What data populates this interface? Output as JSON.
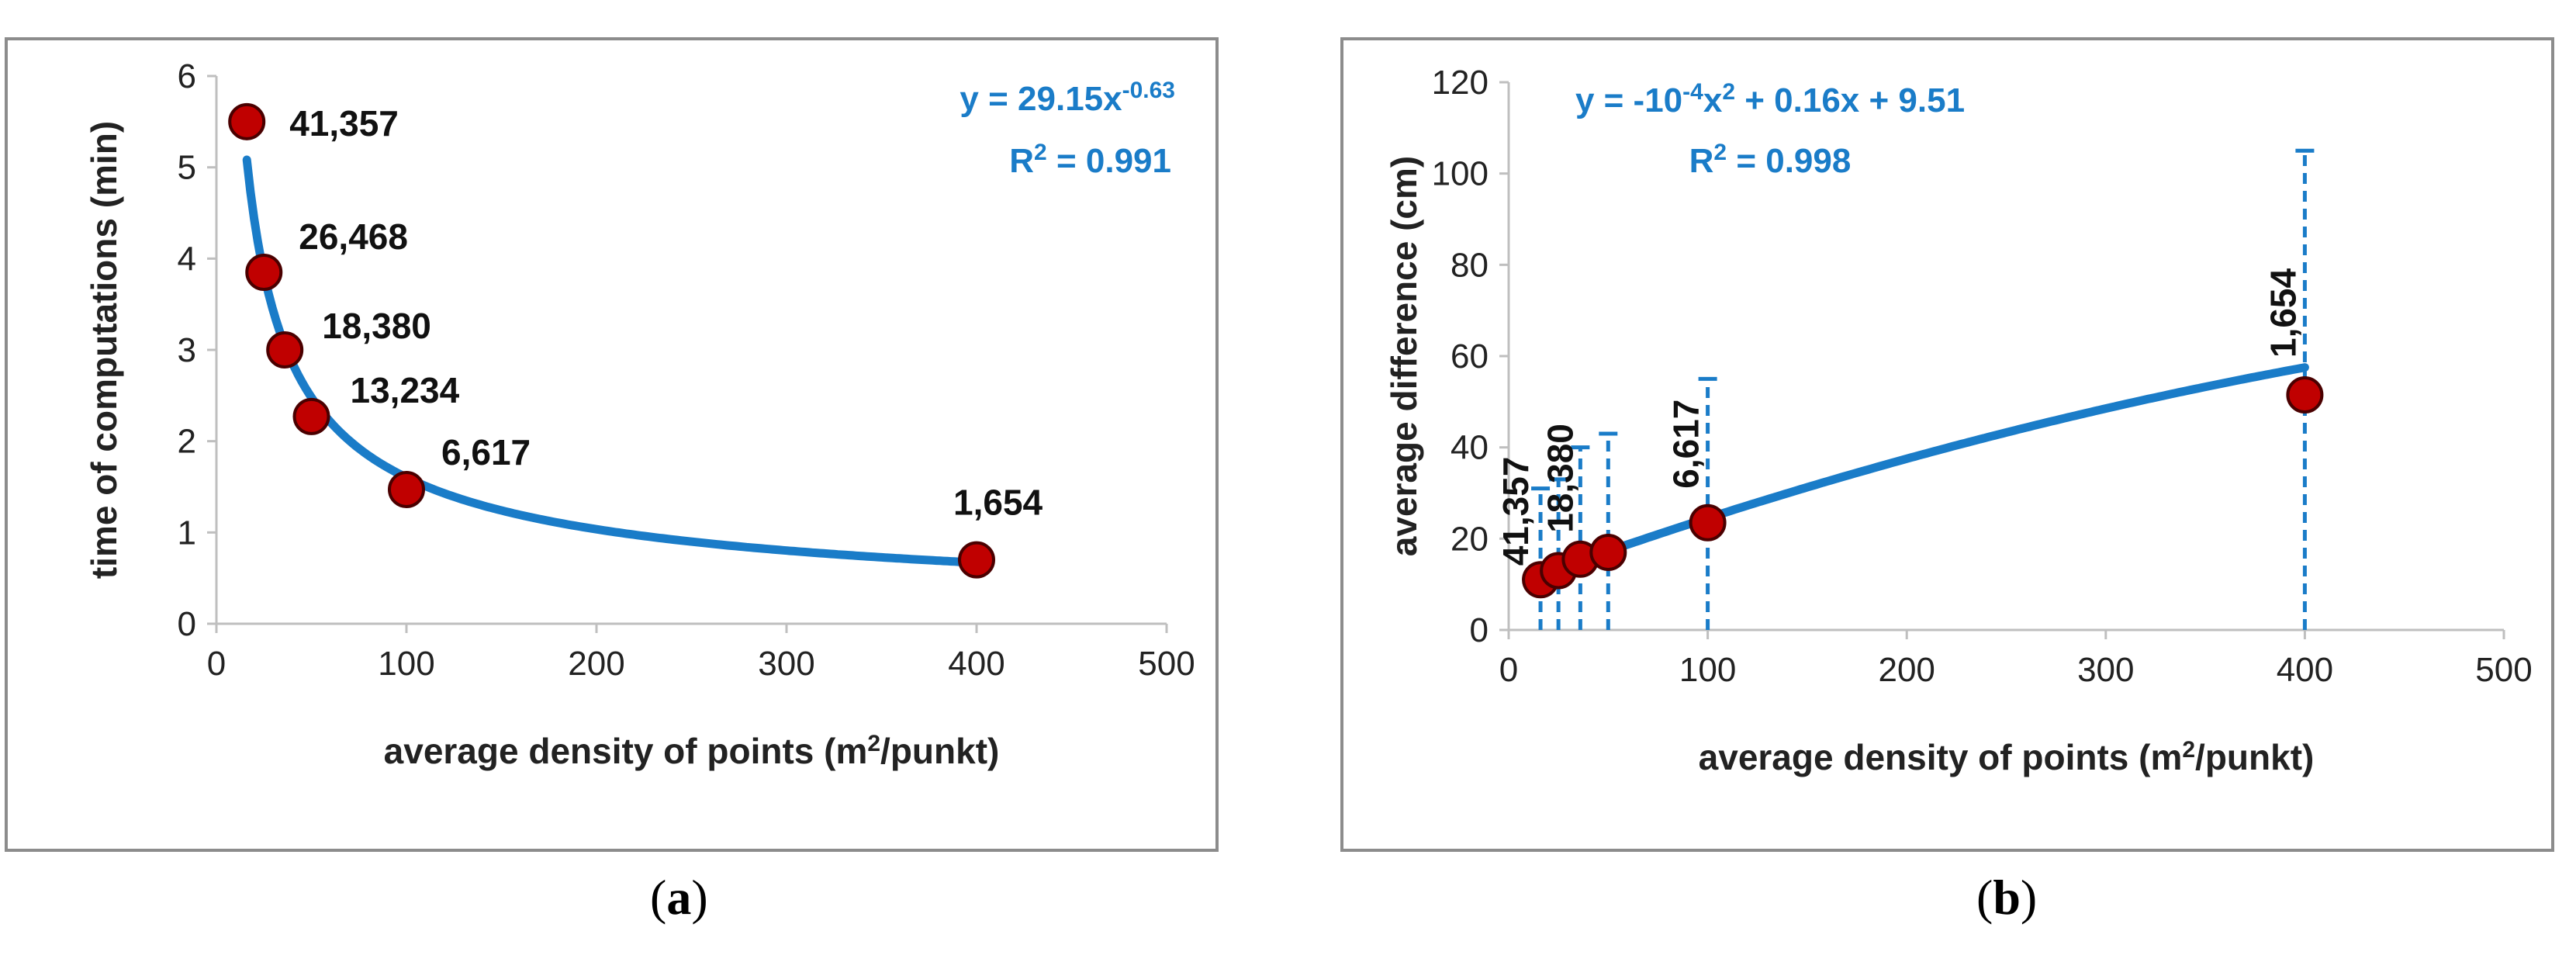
{
  "chart_data": [
    {
      "type": "scatter",
      "panel": "a",
      "caption_letter": "a",
      "xlabel": "average density of points (m",
      "xlabel_sup": "2",
      "xlabel_tail": "/punkt)",
      "ylabel": "time of computations (min)",
      "xlim": [
        0,
        500
      ],
      "ylim": [
        0,
        6
      ],
      "xticks": [
        "0",
        "100",
        "200",
        "300",
        "400",
        "500"
      ],
      "yticks": [
        "0",
        "1",
        "2",
        "3",
        "4",
        "5",
        "6"
      ],
      "x": [
        16,
        25,
        36,
        50,
        100,
        400
      ],
      "y": [
        5.5,
        3.85,
        3.0,
        2.27,
        1.47,
        0.7
      ],
      "point_labels": [
        "41,357",
        "26,468",
        "18,380",
        "13,234",
        "6,617",
        "1,654"
      ],
      "trendline": {
        "type": "power",
        "a": 29.15,
        "b": -0.63,
        "x_range": [
          16,
          400
        ]
      },
      "equation": {
        "prefix": "y = 29.15x",
        "sup": "-0.63",
        "r2_prefix": "R",
        "r2_sup": "2",
        "r2_value": " = 0.991"
      },
      "colors": {
        "marker": "#c00000",
        "marker_edge": "#4a0000",
        "trend": "#1a7cc8",
        "equation": "#1a7cc8",
        "axis": "#bfbfbf"
      }
    },
    {
      "type": "scatter",
      "panel": "b",
      "caption_letter": "b",
      "xlabel": "average density of points (m",
      "xlabel_sup": "2",
      "xlabel_tail": "/punkt)",
      "ylabel": "average difference (cm)",
      "xlim": [
        0,
        500
      ],
      "ylim": [
        0,
        120
      ],
      "xticks": [
        "0",
        "100",
        "200",
        "300",
        "400",
        "500"
      ],
      "yticks": [
        "0",
        "20",
        "40",
        "60",
        "80",
        "100",
        "120"
      ],
      "x": [
        16,
        25,
        36,
        50,
        100,
        400
      ],
      "y": [
        11,
        13,
        15.5,
        17,
        23.5,
        51.5
      ],
      "error_upper": [
        31,
        33,
        40,
        43,
        55,
        105
      ],
      "point_labels": [
        "41,357",
        "",
        "18,380",
        "",
        "6,617",
        "1,654"
      ],
      "trendline": {
        "type": "polynomial",
        "coeffs": [
          -0.0001,
          0.16,
          9.51
        ],
        "x_range": [
          16,
          400
        ]
      },
      "equation": {
        "prefix": "y = -10",
        "sup1": "-4",
        "mid": "x",
        "sup2": "2",
        "tail": " + 0.16x + 9.51",
        "r2_prefix": "R",
        "r2_sup": "2",
        "r2_value": " = 0.998"
      },
      "colors": {
        "marker": "#c00000",
        "marker_edge": "#4a0000",
        "trend": "#1a7cc8",
        "equation": "#1a7cc8",
        "errorbar": "#1a7cc8",
        "axis": "#bfbfbf"
      }
    }
  ]
}
